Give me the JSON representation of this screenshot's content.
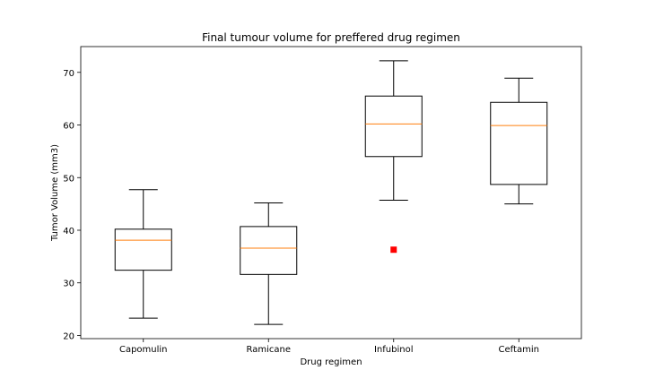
{
  "chart_data": {
    "type": "box",
    "title": "Final tumour volume for preffered drug regimen",
    "xlabel": "Drug regimen",
    "ylabel": "Tumor Volume (mm3)",
    "ylim": [
      19.4,
      74.9
    ],
    "yticks": [
      20,
      30,
      40,
      50,
      60,
      70
    ],
    "categories": [
      "Capomulin",
      "Ramicane",
      "Infubinol",
      "Ceftamin"
    ],
    "boxes": [
      {
        "name": "Capomulin",
        "whislo": 23.3,
        "q1": 32.4,
        "med": 38.1,
        "q3": 40.2,
        "whishi": 47.7,
        "fliers": []
      },
      {
        "name": "Ramicane",
        "whislo": 22.1,
        "q1": 31.6,
        "med": 36.6,
        "q3": 40.7,
        "whishi": 45.2,
        "fliers": []
      },
      {
        "name": "Infubinol",
        "whislo": 45.7,
        "q1": 54.0,
        "med": 60.2,
        "q3": 65.5,
        "whishi": 72.2,
        "fliers": [
          36.3
        ]
      },
      {
        "name": "Ceftamin",
        "whislo": 45.0,
        "q1": 48.7,
        "med": 59.9,
        "q3": 64.3,
        "whishi": 68.9,
        "fliers": []
      }
    ],
    "colors": {
      "box": "#000000",
      "median": "#ff7f0e",
      "flier": "#ff0000"
    },
    "grid": false
  }
}
